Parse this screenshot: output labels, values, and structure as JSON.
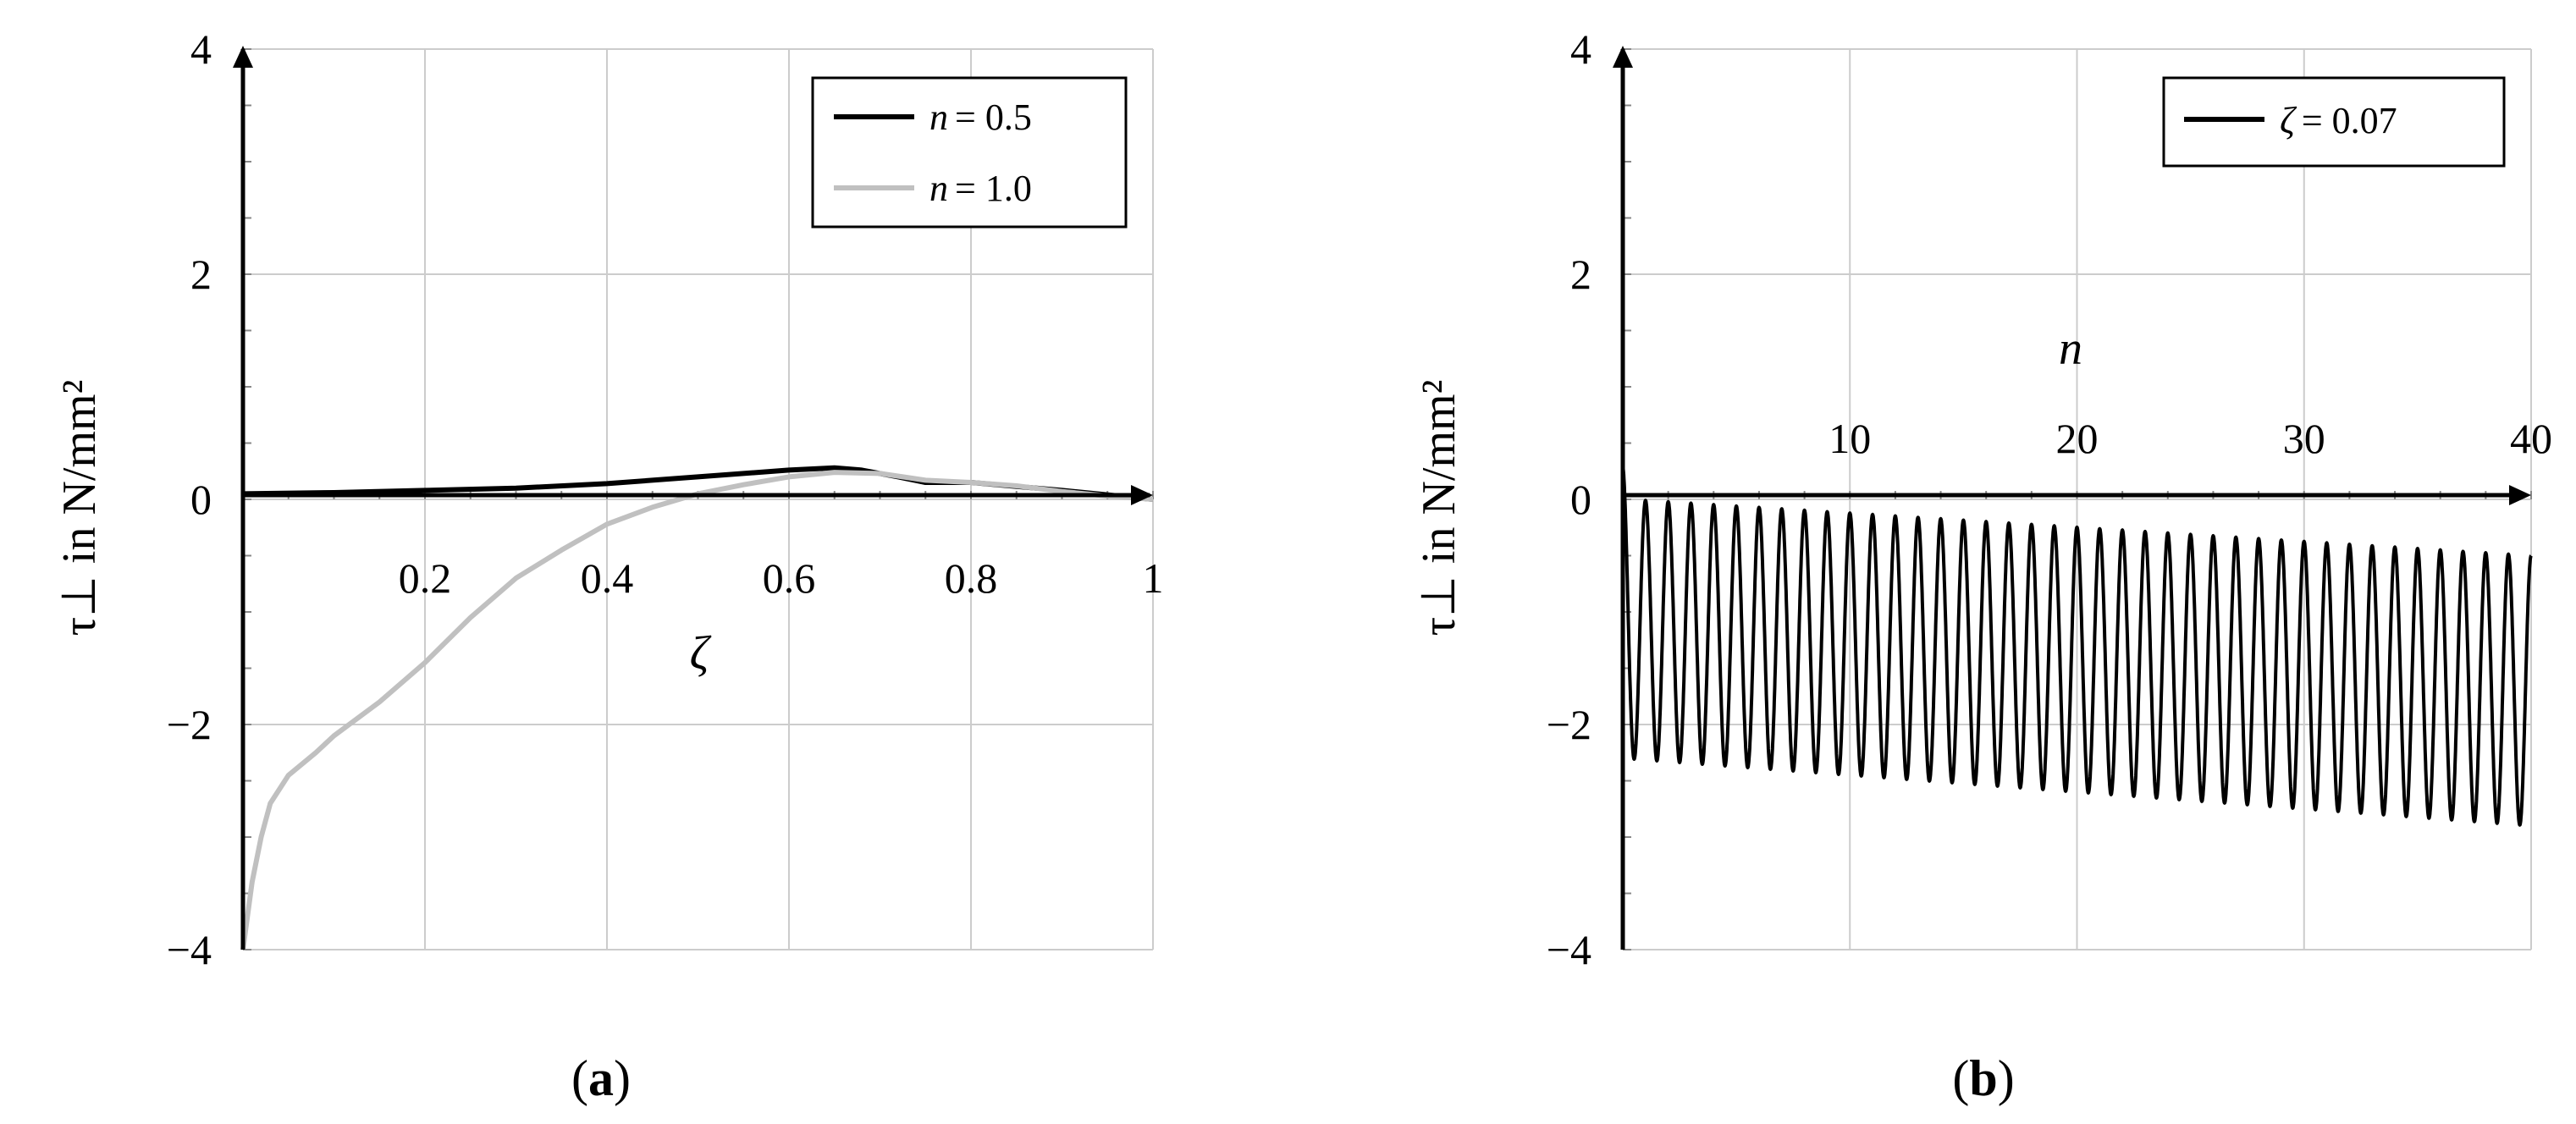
{
  "chart_data": [
    {
      "type": "line",
      "caption": "a",
      "xlabel": "ζ",
      "ylabel": "τ⊥ in N/mm²",
      "xlim": [
        0,
        1
      ],
      "ylim": [
        -4,
        4
      ],
      "xticks": [
        0.2,
        0.4,
        0.6,
        0.8,
        1
      ],
      "xtick_labels": [
        "0.2",
        "0.4",
        "0.6",
        "0.8",
        "1"
      ],
      "yticks": [
        -4,
        -2,
        0,
        2,
        4
      ],
      "ytick_labels": [
        "−4",
        "−2",
        "0",
        "2",
        "4"
      ],
      "grid": true,
      "legend_position": "top-right",
      "series": [
        {
          "name": "n = 0.5",
          "legend_var": "n",
          "legend_val": "= 0.5",
          "color": "#000000",
          "x": [
            0.0,
            0.1,
            0.2,
            0.3,
            0.4,
            0.5,
            0.6,
            0.65,
            0.68,
            0.72,
            0.75,
            0.8,
            0.9,
            1.0
          ],
          "y": [
            0.05,
            0.06,
            0.08,
            0.1,
            0.14,
            0.2,
            0.26,
            0.28,
            0.26,
            0.2,
            0.15,
            0.15,
            0.08,
            0.0
          ]
        },
        {
          "name": "n = 1.0",
          "legend_var": "n",
          "legend_val": "= 1.0",
          "color": "#c0c0c0",
          "x": [
            0.0,
            0.01,
            0.02,
            0.03,
            0.05,
            0.08,
            0.1,
            0.15,
            0.2,
            0.25,
            0.3,
            0.35,
            0.4,
            0.45,
            0.5,
            0.55,
            0.6,
            0.65,
            0.7,
            0.75,
            0.8,
            0.85,
            0.9,
            0.95,
            1.0
          ],
          "y": [
            -4.0,
            -3.4,
            -3.0,
            -2.7,
            -2.45,
            -2.25,
            -2.1,
            -1.8,
            -1.45,
            -1.05,
            -0.7,
            -0.45,
            -0.22,
            -0.07,
            0.05,
            0.13,
            0.2,
            0.24,
            0.23,
            0.17,
            0.15,
            0.12,
            0.07,
            0.03,
            0.0
          ]
        }
      ]
    },
    {
      "type": "line",
      "caption": "b",
      "xlabel": "n",
      "ylabel": "τ⊥ in N/mm²",
      "xlim": [
        0,
        40
      ],
      "ylim": [
        -4,
        4
      ],
      "xticks": [
        10,
        20,
        30,
        40
      ],
      "xtick_labels": [
        "10",
        "20",
        "30",
        "40"
      ],
      "yticks": [
        -4,
        -2,
        0,
        2,
        4
      ],
      "ytick_labels": [
        "−4",
        "−2",
        "0",
        "2",
        "4"
      ],
      "grid": true,
      "legend_position": "top-right",
      "series": [
        {
          "name": "ζ = 0.07",
          "legend_var": "ζ",
          "legend_val": "= 0.07",
          "color": "#000000",
          "cycles_per_unit": 1,
          "peak_start": 0.3,
          "trough_start": -2.3,
          "peak_end": -0.5,
          "trough_end": -2.9
        }
      ]
    }
  ]
}
